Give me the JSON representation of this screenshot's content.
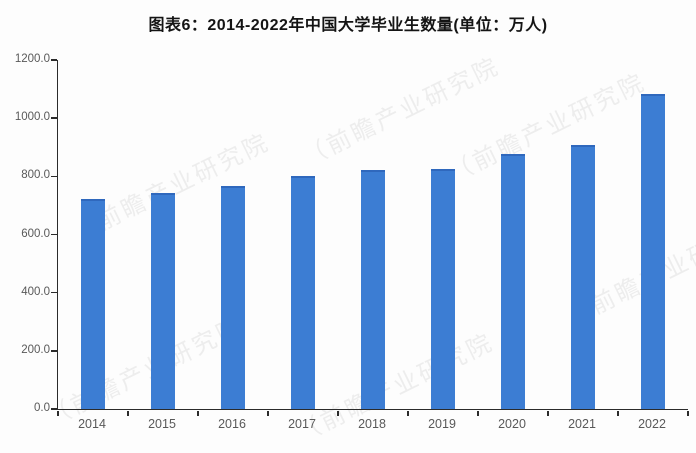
{
  "title": "图表6：2014-2022年中国大学毕业生数量(单位：万人)",
  "watermark": {
    "text": "（前瞻产业研究院",
    "color": "#ebebeb"
  },
  "colors": {
    "background": "#fdfdfd",
    "bar": "#3c7dd3",
    "bar_top": "#2f68bd",
    "axis": "#2b2b2b",
    "tick_label": "#595959",
    "title_text": "#141414"
  },
  "chart_data": {
    "type": "bar",
    "title": "图表6：2014-2022年中国大学毕业生数量(单位：万人)",
    "unit": "万人",
    "categories": [
      "2014",
      "2015",
      "2016",
      "2017",
      "2018",
      "2019",
      "2020",
      "2021",
      "2022"
    ],
    "values": [
      715,
      735,
      760,
      795,
      815,
      820,
      870,
      900,
      1075
    ],
    "xlabel": "",
    "ylabel": "",
    "ylim": [
      0,
      1200
    ],
    "ytick_interval": 200,
    "ytick_labels": [
      "0.0",
      "200.0",
      "400.0",
      "600.0",
      "800.0",
      "1000.0",
      "1200.0"
    ],
    "grid": false,
    "legend": "none"
  }
}
